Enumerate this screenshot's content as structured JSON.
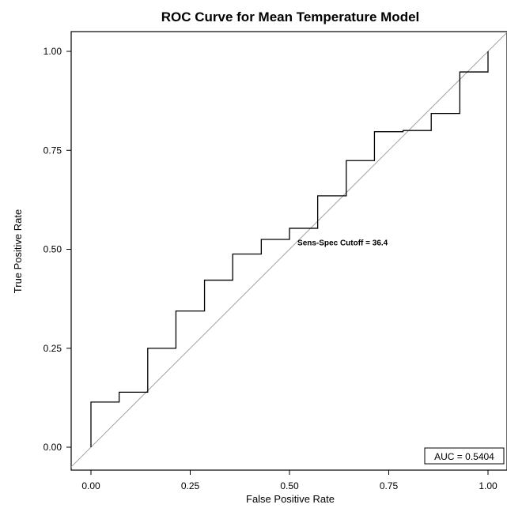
{
  "chart_data": {
    "type": "line",
    "title": "ROC Curve for Mean Temperature Model",
    "xlabel": "False Positive Rate",
    "ylabel": "True Positive Rate",
    "xlim": [
      0,
      1
    ],
    "ylim": [
      0,
      1
    ],
    "x_ticks": [
      "0.00",
      "0.25",
      "0.50",
      "0.75",
      "1.00"
    ],
    "y_ticks": [
      "0.00",
      "0.25",
      "0.50",
      "0.75",
      "1.00"
    ],
    "grid": false,
    "reference_line": {
      "x": [
        0,
        1
      ],
      "y": [
        0,
        1
      ],
      "color": "#a0a0a0"
    },
    "series": [
      {
        "step": "post",
        "color": "#000000",
        "x": [
          0.0,
          0.0,
          0.071,
          0.143,
          0.214,
          0.286,
          0.357,
          0.429,
          0.5,
          0.571,
          0.643,
          0.714,
          0.786,
          0.857,
          0.929,
          1.0,
          1.0
        ],
        "y": [
          0.0,
          0.114,
          0.139,
          0.25,
          0.344,
          0.422,
          0.488,
          0.525,
          0.553,
          0.635,
          0.724,
          0.797,
          0.8,
          0.843,
          0.948,
          0.948,
          1.0
        ]
      }
    ],
    "annotations": [
      {
        "text": "Sens-Spec Cutoff = 36.4",
        "x": 0.52,
        "y": 0.51
      }
    ],
    "inset_box": {
      "text": "AUC = 0.5404",
      "position": "bottom-right"
    }
  }
}
